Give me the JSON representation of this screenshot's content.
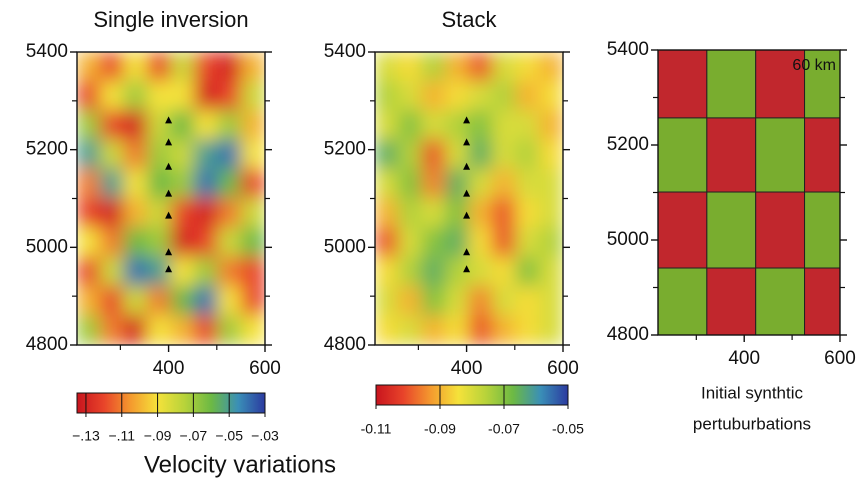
{
  "chart_data": [
    {
      "type": "heatmap",
      "title": "Single inversion",
      "xlim": [
        210,
        600
      ],
      "xticks": [
        400,
        600
      ],
      "minor_xticks": [
        300,
        500
      ],
      "ylim": [
        4800,
        5400
      ],
      "yticks": [
        4800,
        5000,
        5200,
        5400
      ],
      "minor_yticks": [
        4900,
        5100,
        5300
      ],
      "values": [
        [
          -0.1,
          -0.12,
          -0.09,
          -0.12,
          -0.08,
          -0.12,
          -0.13,
          -0.1
        ],
        [
          -0.12,
          -0.09,
          -0.07,
          -0.09,
          -0.09,
          -0.13,
          -0.12,
          -0.08
        ],
        [
          -0.07,
          -0.12,
          -0.13,
          -0.08,
          -0.06,
          -0.09,
          -0.07,
          -0.1
        ],
        [
          -0.05,
          -0.08,
          -0.11,
          -0.07,
          -0.08,
          -0.05,
          -0.04,
          -0.09
        ],
        [
          -0.11,
          -0.05,
          -0.09,
          -0.06,
          -0.07,
          -0.04,
          -0.06,
          -0.12
        ],
        [
          -0.12,
          -0.13,
          -0.1,
          -0.08,
          -0.12,
          -0.13,
          -0.11,
          -0.08
        ],
        [
          -0.09,
          -0.11,
          -0.06,
          -0.07,
          -0.13,
          -0.12,
          -0.08,
          -0.06
        ],
        [
          -0.12,
          -0.08,
          -0.04,
          -0.05,
          -0.09,
          -0.07,
          -0.11,
          -0.12
        ],
        [
          -0.1,
          -0.12,
          -0.08,
          -0.11,
          -0.06,
          -0.04,
          -0.09,
          -0.12
        ],
        [
          -0.07,
          -0.11,
          -0.13,
          -0.09,
          -0.1,
          -0.12,
          -0.07,
          -0.09
        ]
      ],
      "stations": {
        "x": [
          400,
          400,
          400,
          400,
          400,
          400,
          400
        ],
        "y": [
          5260,
          5215,
          5165,
          5110,
          5065,
          4990,
          4955
        ]
      },
      "colorbar": {
        "lim": [
          -0.135,
          -0.03
        ],
        "colors": [
          "#c8141e",
          "#e8442a",
          "#f49a2e",
          "#f5e23a",
          "#b8d33a",
          "#6cb944",
          "#3a8fb7",
          "#2b3aa0"
        ],
        "ticks": [
          {
            "value": -0.13,
            "label": "−.13"
          },
          {
            "value": -0.11,
            "label": "−.11"
          },
          {
            "value": -0.09,
            "label": "−.09"
          },
          {
            "value": -0.07,
            "label": "−.07"
          },
          {
            "value": -0.05,
            "label": "−.05"
          },
          {
            "value": -0.03,
            "label": "−.03"
          }
        ]
      }
    },
    {
      "type": "heatmap",
      "title": "Stack",
      "xlim": [
        210,
        600
      ],
      "xticks": [
        400,
        600
      ],
      "minor_xticks": [
        300,
        500
      ],
      "ylim": [
        4800,
        5400
      ],
      "yticks": [
        4800,
        5000,
        5200,
        5400
      ],
      "minor_yticks": [
        4900,
        5100,
        5300
      ],
      "values": [
        [
          -0.08,
          -0.085,
          -0.075,
          -0.09,
          -0.1,
          -0.08,
          -0.085,
          -0.09
        ],
        [
          -0.075,
          -0.08,
          -0.09,
          -0.085,
          -0.08,
          -0.075,
          -0.09,
          -0.085
        ],
        [
          -0.08,
          -0.07,
          -0.08,
          -0.075,
          -0.07,
          -0.08,
          -0.08,
          -0.09
        ],
        [
          -0.065,
          -0.075,
          -0.1,
          -0.08,
          -0.065,
          -0.08,
          -0.075,
          -0.085
        ],
        [
          -0.08,
          -0.07,
          -0.095,
          -0.065,
          -0.08,
          -0.09,
          -0.08,
          -0.08
        ],
        [
          -0.09,
          -0.075,
          -0.08,
          -0.07,
          -0.09,
          -0.1,
          -0.085,
          -0.08
        ],
        [
          -0.1,
          -0.08,
          -0.07,
          -0.065,
          -0.085,
          -0.1,
          -0.08,
          -0.075
        ],
        [
          -0.085,
          -0.075,
          -0.065,
          -0.075,
          -0.08,
          -0.085,
          -0.07,
          -0.08
        ],
        [
          -0.08,
          -0.09,
          -0.07,
          -0.08,
          -0.095,
          -0.08,
          -0.085,
          -0.08
        ],
        [
          -0.085,
          -0.08,
          -0.09,
          -0.085,
          -0.1,
          -0.09,
          -0.085,
          -0.08
        ]
      ],
      "stations": {
        "x": [
          400,
          400,
          400,
          400,
          400,
          400,
          400
        ],
        "y": [
          5260,
          5215,
          5165,
          5110,
          5065,
          4990,
          4955
        ]
      },
      "colorbar": {
        "lim": [
          -0.11,
          -0.05
        ],
        "colors": [
          "#c8141e",
          "#e8442a",
          "#f49a2e",
          "#f5e23a",
          "#b8d33a",
          "#6cb944",
          "#3a8fb7",
          "#2b3aa0"
        ],
        "ticks": [
          -0.11,
          -0.09,
          -0.07,
          -0.05
        ]
      }
    },
    {
      "type": "checkerboard",
      "annotation": "60 km",
      "xlabel": [
        "Initial synthtic",
        "pertuburbations"
      ],
      "xlim": [
        220,
        600
      ],
      "xticks": [
        400,
        600
      ],
      "minor_xticks": [
        300,
        500
      ],
      "ylim": [
        4800,
        5400
      ],
      "yticks": [
        4800,
        5000,
        5200,
        5400
      ],
      "minor_yticks": [
        4900,
        5100,
        5300
      ],
      "x_edges": [
        220,
        322,
        424,
        526,
        600
      ],
      "y_edges": [
        5400,
        5257,
        5101,
        4941,
        4800
      ],
      "values": [
        [
          -1,
          1,
          -1,
          1
        ],
        [
          1,
          -1,
          1,
          -1
        ],
        [
          -1,
          1,
          -1,
          1
        ],
        [
          1,
          -1,
          1,
          -1
        ]
      ],
      "low_color": "#c1272d",
      "high_color": "#79ad2f"
    }
  ],
  "colorbar_label": "Velocity variations"
}
